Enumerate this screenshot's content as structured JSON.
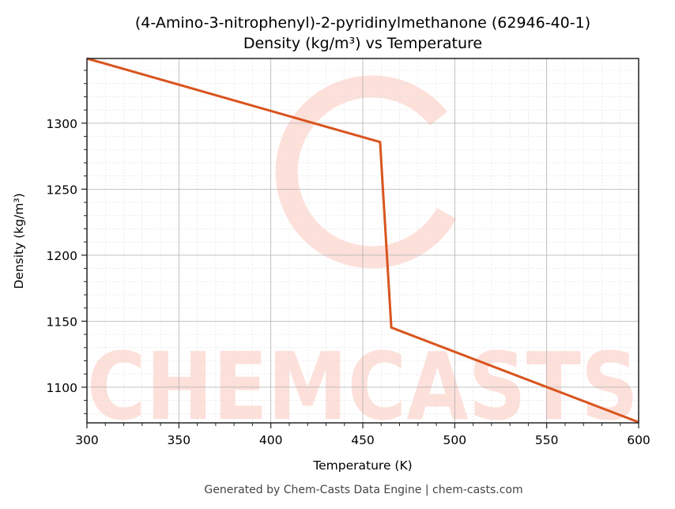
{
  "title_line1": "(4-Amino-3-nitrophenyl)-2-pyridinylmethanone (62946-40-1)",
  "title_line2": "Density (kg/m³) vs Temperature",
  "xlabel": "Temperature (K)",
  "ylabel": "Density (kg/m³)",
  "footer": "Generated by Chem-Casts Data Engine | chem-casts.com",
  "watermark": "CHEMCASTS",
  "colors": {
    "line": "#d9541e",
    "watermark": "#fde0da",
    "grid_major": "#b0b0b0",
    "grid_minor": "#e0e0e0"
  },
  "chart_data": {
    "type": "line",
    "title": "(4-Amino-3-nitrophenyl)-2-pyridinylmethanone (62946-40-1) Density (kg/m³) vs Temperature",
    "xlabel": "Temperature (K)",
    "ylabel": "Density (kg/m³)",
    "xlim": [
      300,
      600
    ],
    "ylim": [
      1073,
      1349
    ],
    "x_ticks": [
      300,
      350,
      400,
      450,
      500,
      550,
      600
    ],
    "y_ticks": [
      1100,
      1150,
      1200,
      1250,
      1300
    ],
    "grid": true,
    "legend": null,
    "series": [
      {
        "name": "Density",
        "x": [
          300,
          459.4,
          465.5,
          600
        ],
        "y": [
          1349,
          1285.7,
          1145.2,
          1073.5
        ]
      }
    ]
  }
}
